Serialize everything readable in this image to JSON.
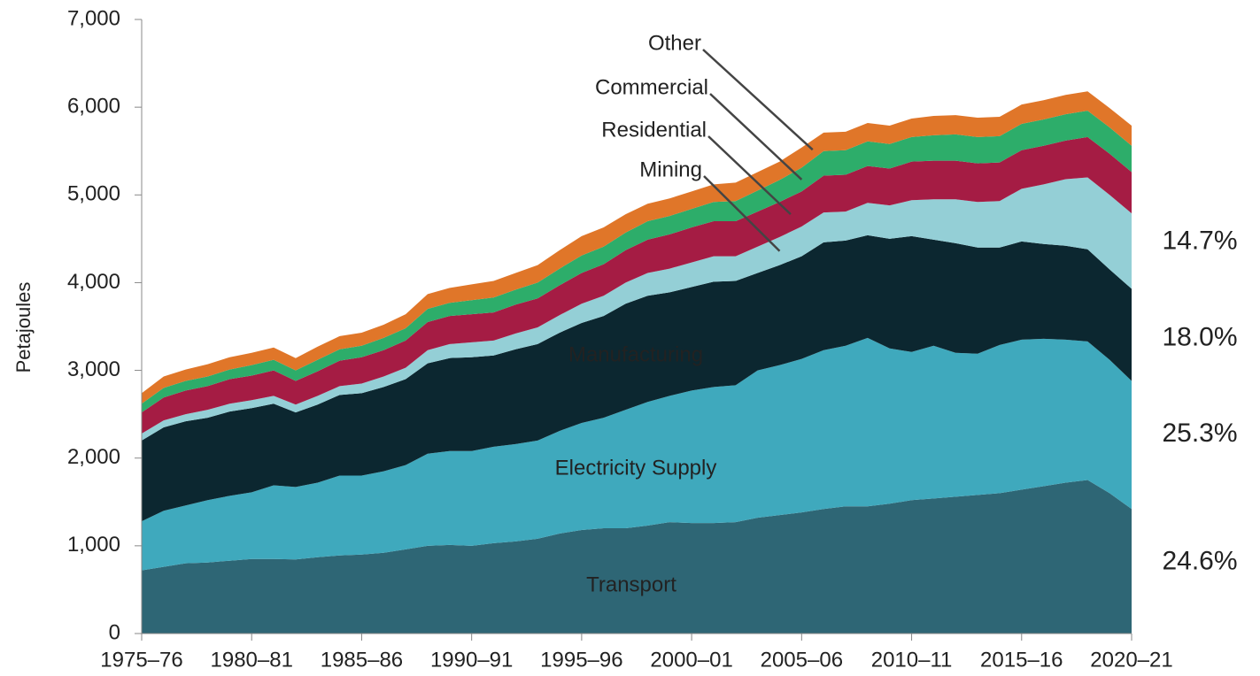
{
  "chart_data": {
    "type": "stacked_area",
    "y_label": "Petajoules",
    "categories": [
      "1975–76",
      null,
      null,
      null,
      null,
      "1980–81",
      null,
      null,
      null,
      null,
      "1985–86",
      null,
      null,
      null,
      null,
      "1990–91",
      null,
      null,
      null,
      null,
      "1995–96",
      null,
      null,
      null,
      null,
      "2000–01",
      null,
      null,
      null,
      null,
      "2005–06",
      null,
      null,
      null,
      null,
      "2010–11",
      null,
      null,
      null,
      null,
      "2015–16",
      null,
      null,
      null,
      null,
      "2020–21"
    ],
    "ylim": [
      0,
      7000
    ],
    "yticks": [
      0,
      {
        "value": 1000,
        "label": "1,000"
      },
      {
        "value": 2000,
        "label": "2,000"
      },
      {
        "value": 3000,
        "label": "3,000"
      },
      {
        "value": 4000,
        "label": "4,000"
      },
      {
        "value": 5000,
        "label": "5,000"
      },
      {
        "value": 6000,
        "label": "6,000"
      },
      {
        "value": 7000,
        "label": "7,000"
      }
    ],
    "series": [
      {
        "name": "Transport",
        "color": "#2e6675",
        "share_label": "24.6%",
        "values": [
          720,
          760,
          800,
          810,
          830,
          850,
          850,
          845,
          870,
          890,
          900,
          920,
          960,
          1000,
          1010,
          1000,
          1030,
          1050,
          1080,
          1140,
          1180,
          1200,
          1200,
          1230,
          1270,
          1260,
          1260,
          1270,
          1320,
          1350,
          1380,
          1420,
          1450,
          1450,
          1480,
          1520,
          1540,
          1560,
          1580,
          1600,
          1640,
          1680,
          1720,
          1750,
          1600,
          1420
        ]
      },
      {
        "name": "Electricity Supply",
        "color": "#3fa9bd",
        "share_label": "25.3%",
        "values": [
          560,
          640,
          660,
          710,
          740,
          760,
          840,
          825,
          850,
          910,
          900,
          930,
          960,
          1050,
          1070,
          1080,
          1100,
          1110,
          1120,
          1170,
          1220,
          1260,
          1350,
          1410,
          1440,
          1510,
          1550,
          1560,
          1680,
          1710,
          1750,
          1810,
          1830,
          1920,
          1770,
          1690,
          1740,
          1640,
          1610,
          1690,
          1710,
          1680,
          1630,
          1580,
          1520,
          1460
        ]
      },
      {
        "name": "Manufacturing",
        "color": "#0c2730",
        "share_label": "18.0%",
        "values": [
          920,
          950,
          960,
          940,
          960,
          960,
          930,
          850,
          890,
          920,
          940,
          960,
          980,
          1030,
          1060,
          1070,
          1040,
          1080,
          1100,
          1120,
          1140,
          1160,
          1210,
          1210,
          1180,
          1180,
          1200,
          1190,
          1110,
          1140,
          1170,
          1230,
          1200,
          1170,
          1250,
          1320,
          1210,
          1250,
          1210,
          1110,
          1120,
          1080,
          1070,
          1050,
          1030,
          1050
        ]
      },
      {
        "name": "Mining",
        "color": "#94cfd6",
        "share_label": "14.7%",
        "values": [
          80,
          80,
          80,
          90,
          90,
          90,
          90,
          90,
          100,
          100,
          110,
          120,
          130,
          150,
          160,
          170,
          170,
          180,
          190,
          200,
          220,
          230,
          240,
          260,
          270,
          280,
          290,
          280,
          300,
          320,
          340,
          340,
          330,
          370,
          380,
          410,
          460,
          500,
          520,
          530,
          600,
          680,
          760,
          820,
          850,
          860
        ]
      },
      {
        "name": "Residential",
        "color": "#a51c44",
        "values": [
          240,
          260,
          270,
          270,
          280,
          280,
          290,
          270,
          280,
          290,
          300,
          300,
          310,
          320,
          320,
          320,
          320,
          330,
          330,
          340,
          350,
          360,
          370,
          380,
          390,
          400,
          400,
          400,
          400,
          400,
          400,
          420,
          420,
          420,
          420,
          440,
          440,
          440,
          440,
          440,
          440,
          440,
          440,
          460,
          470,
          470
        ]
      },
      {
        "name": "Commercial",
        "color": "#2dad6a",
        "values": [
          100,
          110,
          110,
          110,
          110,
          120,
          120,
          120,
          130,
          130,
          130,
          140,
          140,
          150,
          150,
          160,
          170,
          170,
          180,
          190,
          200,
          200,
          200,
          210,
          210,
          210,
          220,
          230,
          240,
          250,
          270,
          280,
          280,
          280,
          280,
          280,
          290,
          300,
          300,
          300,
          300,
          300,
          300,
          300,
          300,
          300
        ]
      },
      {
        "name": "Other",
        "color": "#e07629",
        "values": [
          120,
          130,
          130,
          140,
          140,
          140,
          140,
          140,
          150,
          150,
          150,
          150,
          160,
          170,
          170,
          180,
          190,
          190,
          200,
          210,
          220,
          220,
          210,
          200,
          200,
          200,
          200,
          210,
          210,
          210,
          230,
          210,
          210,
          210,
          210,
          210,
          220,
          220,
          220,
          220,
          220,
          220,
          220,
          220,
          220,
          230
        ]
      }
    ]
  }
}
